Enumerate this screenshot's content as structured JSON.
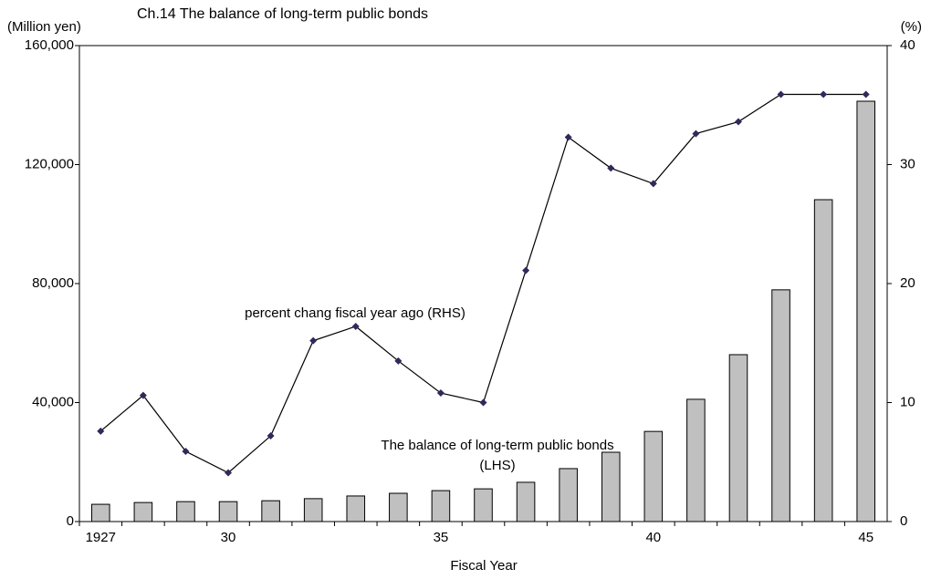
{
  "chart_data": {
    "type": "bar-line",
    "title": "Ch.14 The balance of long-term public bonds",
    "y_label": "(Million yen)",
    "y2_label": "(%)",
    "x_label": "Fiscal Year",
    "categories": [
      "1927",
      null,
      null,
      "30",
      null,
      null,
      null,
      null,
      "35",
      null,
      null,
      null,
      null,
      "40",
      null,
      null,
      null,
      null,
      "45"
    ],
    "series": [
      {
        "name": [
          "The balance of long-term public bonds",
          "(LHS)"
        ],
        "type": "bar",
        "color": "#c0c0c0",
        "values": [
          5800,
          6400,
          6700,
          6700,
          7000,
          7700,
          8600,
          9500,
          10400,
          11000,
          13200,
          17800,
          23300,
          30300,
          41100,
          56100,
          77900,
          108200,
          141300
        ]
      },
      {
        "name": [
          "percent chang fiscal year ago (RHS)"
        ],
        "type": "line",
        "axis": "y2",
        "color": "#2e2a5c",
        "values": [
          7.6,
          10.6,
          5.9,
          4.1,
          7.2,
          15.2,
          16.4,
          13.5,
          10.8,
          10.0,
          21.1,
          32.3,
          29.7,
          28.4,
          32.6,
          33.6,
          35.9,
          35.9,
          35.9
        ]
      }
    ],
    "ylim": [
      0,
      160000
    ],
    "yticks": [
      0,
      {
        "value": 40000,
        "label": "40,000"
      },
      {
        "value": 80000,
        "label": "80,000"
      },
      {
        "value": 120000,
        "label": "120,000"
      },
      {
        "value": 160000,
        "label": "160,000"
      }
    ],
    "y2lim": [
      0,
      40
    ],
    "y2ticks": [
      0,
      10,
      20,
      30,
      40
    ],
    "grid": false
  }
}
